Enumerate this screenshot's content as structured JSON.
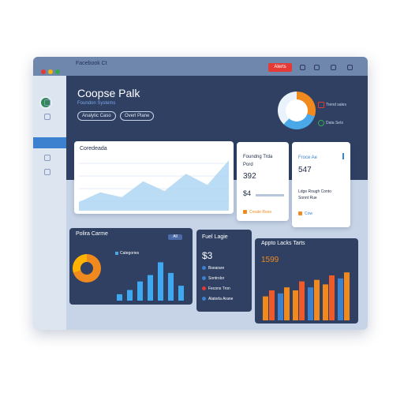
{
  "window": {
    "title": "Facebook Ct",
    "alert_button": "Alerts"
  },
  "header": {
    "title": "Coopse Palk",
    "subtitle": "Foundon Systems",
    "pills": [
      "Analytic Caso",
      "Overl Plane"
    ],
    "legend": [
      "Trend sales",
      "Data Sets"
    ]
  },
  "area_card": {
    "title": "Coredeada",
    "chart_data": {
      "type": "area",
      "values": [
        14,
        30,
        22,
        48,
        32,
        60,
        42,
        82
      ],
      "ylim": [
        0,
        90
      ]
    }
  },
  "kpi1": {
    "title": "Foundng Trda",
    "line2": "Pord",
    "value": "392",
    "subline": "$4",
    "footer": "Create Reav"
  },
  "kpi2": {
    "title": "Froce Ae",
    "value": "547",
    "desc1": "Ldge Rough Conto",
    "desc2": "Sonnt Rue",
    "footer": "Cow"
  },
  "donut_card": {
    "title": "Polira Carme",
    "badge": "All",
    "legend": "Categories",
    "chart_data": {
      "type": "bar",
      "values": [
        6,
        10,
        18,
        24,
        36,
        26,
        14
      ],
      "ylim": [
        0,
        40
      ]
    },
    "donut_values": [
      70,
      30
    ]
  },
  "list_card": {
    "title": "Fuel Lagie",
    "value": "$3",
    "items": [
      "Bsearare",
      "Sontrolor",
      "Fecons Tron",
      "Alatorla Arane"
    ]
  },
  "bar_card": {
    "title": "Appto Lacks Tarts",
    "value": "1599",
    "chart_data": {
      "type": "bar",
      "series": [
        {
          "values": [
            16,
            18,
            20,
            22,
            24,
            28
          ]
        },
        {
          "values": [
            20,
            22,
            26,
            27,
            30,
            32
          ]
        }
      ],
      "ylim": [
        0,
        40
      ]
    }
  },
  "colors": {
    "navy": "#2f4063",
    "accent_blue": "#3c80d0",
    "orange": "#f08a1e",
    "red": "#e53935"
  }
}
